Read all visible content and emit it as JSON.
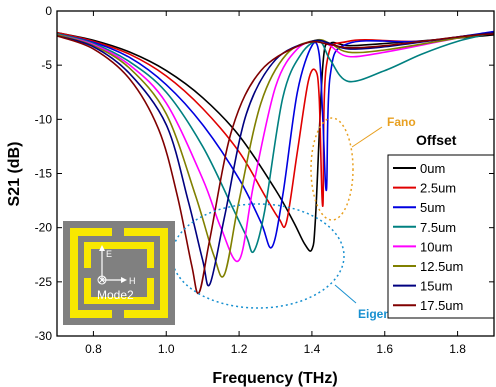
{
  "chart_data": {
    "type": "line",
    "title": "",
    "xlabel": "Frequency (THz)",
    "ylabel": "S21 (dB)",
    "xlim": [
      0.7,
      1.9
    ],
    "ylim": [
      -30,
      0
    ],
    "xticks": [
      "0.8",
      "1.0",
      "1.2",
      "1.4",
      "1.6",
      "1.8"
    ],
    "yticks": [
      "0",
      "-5",
      "-10",
      "-15",
      "-20",
      "-25",
      "-30"
    ],
    "grid": false,
    "legend": {
      "title": "Offset",
      "position": "right"
    },
    "series": [
      {
        "name": "0um",
        "color": "#000000",
        "values": [
          [
            0.7,
            -2.0
          ],
          [
            0.8,
            -2.7
          ],
          [
            0.9,
            -3.8
          ],
          [
            1.0,
            -5.5
          ],
          [
            1.1,
            -8.0
          ],
          [
            1.2,
            -11.5
          ],
          [
            1.3,
            -16.5
          ],
          [
            1.35,
            -19.5
          ],
          [
            1.38,
            -21.5
          ],
          [
            1.4,
            -22.0
          ],
          [
            1.41,
            -19.0
          ],
          [
            1.43,
            -5.0
          ],
          [
            1.45,
            -3.0
          ],
          [
            1.5,
            -3.2
          ],
          [
            1.6,
            -3.0
          ],
          [
            1.8,
            -2.5
          ],
          [
            1.9,
            -2.2
          ]
        ]
      },
      {
        "name": "2.5um",
        "color": "#e00000",
        "values": [
          [
            0.7,
            -2.0
          ],
          [
            0.8,
            -2.8
          ],
          [
            0.9,
            -4.0
          ],
          [
            1.0,
            -6.0
          ],
          [
            1.1,
            -9.0
          ],
          [
            1.2,
            -13.0
          ],
          [
            1.27,
            -17.0
          ],
          [
            1.31,
            -19.2
          ],
          [
            1.33,
            -19.5
          ],
          [
            1.36,
            -13.0
          ],
          [
            1.39,
            -6.5
          ],
          [
            1.41,
            -5.5
          ],
          [
            1.42,
            -8.0
          ],
          [
            1.43,
            -18.0
          ],
          [
            1.44,
            -5.0
          ],
          [
            1.5,
            -2.8
          ],
          [
            1.7,
            -2.8
          ],
          [
            1.9,
            -2.0
          ]
        ]
      },
      {
        "name": "5um",
        "color": "#0000e0",
        "values": [
          [
            0.7,
            -2.1
          ],
          [
            0.8,
            -2.9
          ],
          [
            0.9,
            -4.3
          ],
          [
            1.0,
            -6.8
          ],
          [
            1.1,
            -10.5
          ],
          [
            1.2,
            -15.5
          ],
          [
            1.26,
            -19.5
          ],
          [
            1.29,
            -21.8
          ],
          [
            1.32,
            -17.0
          ],
          [
            1.36,
            -7.5
          ],
          [
            1.4,
            -3.2
          ],
          [
            1.42,
            -4.0
          ],
          [
            1.43,
            -10.0
          ],
          [
            1.44,
            -16.5
          ],
          [
            1.45,
            -6.0
          ],
          [
            1.5,
            -3.0
          ],
          [
            1.7,
            -2.8
          ],
          [
            1.9,
            -1.9
          ]
        ]
      },
      {
        "name": "7.5um",
        "color": "#008080",
        "values": [
          [
            0.7,
            -2.1
          ],
          [
            0.8,
            -3.0
          ],
          [
            0.9,
            -4.7
          ],
          [
            1.0,
            -7.5
          ],
          [
            1.1,
            -12.5
          ],
          [
            1.18,
            -18.0
          ],
          [
            1.22,
            -20.8
          ],
          [
            1.24,
            -22.2
          ],
          [
            1.27,
            -18.5
          ],
          [
            1.32,
            -8.0
          ],
          [
            1.37,
            -4.0
          ],
          [
            1.42,
            -2.8
          ],
          [
            1.45,
            -4.5
          ],
          [
            1.5,
            -6.5
          ],
          [
            1.6,
            -5.5
          ],
          [
            1.7,
            -4.0
          ],
          [
            1.8,
            -2.8
          ],
          [
            1.9,
            -2.0
          ]
        ]
      },
      {
        "name": "10um",
        "color": "#ff00ff",
        "values": [
          [
            0.7,
            -2.2
          ],
          [
            0.8,
            -3.1
          ],
          [
            0.9,
            -5.0
          ],
          [
            1.0,
            -8.5
          ],
          [
            1.1,
            -15.5
          ],
          [
            1.15,
            -20.0
          ],
          [
            1.2,
            -23.0
          ],
          [
            1.24,
            -16.0
          ],
          [
            1.3,
            -7.0
          ],
          [
            1.36,
            -3.5
          ],
          [
            1.42,
            -2.7
          ],
          [
            1.45,
            -3.2
          ],
          [
            1.5,
            -4.2
          ],
          [
            1.6,
            -3.8
          ],
          [
            1.8,
            -2.5
          ],
          [
            1.9,
            -2.0
          ]
        ]
      },
      {
        "name": "12.5um",
        "color": "#808000",
        "values": [
          [
            0.7,
            -2.2
          ],
          [
            0.8,
            -3.2
          ],
          [
            0.9,
            -5.3
          ],
          [
            1.0,
            -9.5
          ],
          [
            1.08,
            -17.0
          ],
          [
            1.13,
            -22.5
          ],
          [
            1.16,
            -24.3
          ],
          [
            1.2,
            -17.5
          ],
          [
            1.26,
            -8.5
          ],
          [
            1.33,
            -4.0
          ],
          [
            1.41,
            -2.7
          ],
          [
            1.45,
            -3.0
          ],
          [
            1.5,
            -3.8
          ],
          [
            1.6,
            -3.6
          ],
          [
            1.8,
            -2.5
          ],
          [
            1.9,
            -2.0
          ]
        ]
      },
      {
        "name": "15um",
        "color": "#000080",
        "values": [
          [
            0.7,
            -2.3
          ],
          [
            0.8,
            -3.3
          ],
          [
            0.9,
            -5.8
          ],
          [
            1.0,
            -10.5
          ],
          [
            1.06,
            -17.5
          ],
          [
            1.1,
            -23.0
          ],
          [
            1.12,
            -25.2
          ],
          [
            1.16,
            -19.0
          ],
          [
            1.22,
            -9.5
          ],
          [
            1.3,
            -4.5
          ],
          [
            1.4,
            -2.8
          ],
          [
            1.45,
            -3.0
          ],
          [
            1.5,
            -3.5
          ],
          [
            1.6,
            -3.3
          ],
          [
            1.8,
            -2.4
          ],
          [
            1.9,
            -2.0
          ]
        ]
      },
      {
        "name": "17.5um",
        "color": "#800000",
        "values": [
          [
            0.7,
            -2.3
          ],
          [
            0.8,
            -3.5
          ],
          [
            0.9,
            -6.3
          ],
          [
            0.98,
            -11.0
          ],
          [
            1.03,
            -17.0
          ],
          [
            1.07,
            -23.5
          ],
          [
            1.09,
            -26.0
          ],
          [
            1.12,
            -21.0
          ],
          [
            1.18,
            -11.0
          ],
          [
            1.26,
            -5.5
          ],
          [
            1.38,
            -3.0
          ],
          [
            1.45,
            -3.1
          ],
          [
            1.5,
            -3.4
          ],
          [
            1.6,
            -3.2
          ],
          [
            1.8,
            -2.4
          ],
          [
            1.9,
            -2.1
          ]
        ]
      }
    ],
    "annotations": [
      {
        "text": "Fano",
        "color": "#e8a020"
      },
      {
        "text": "Eigen",
        "color": "#1890d0"
      }
    ]
  },
  "inset": {
    "label": "Mode2",
    "axis_e": "E",
    "axis_h": "H"
  }
}
